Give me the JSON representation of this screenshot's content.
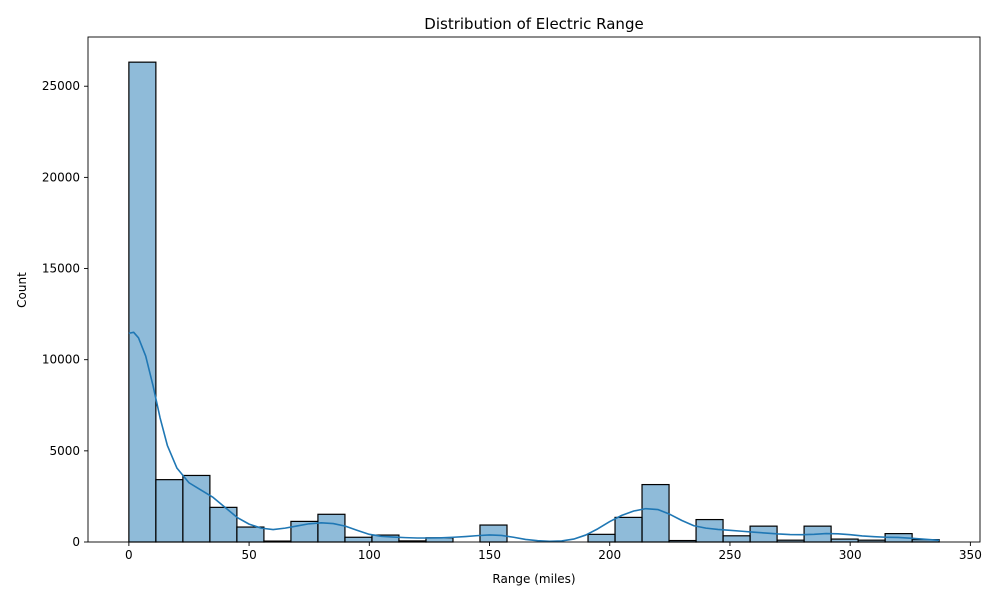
{
  "chart_data": {
    "type": "bar",
    "title": "Distribution of Electric Range",
    "xlabel": "Range (miles)",
    "ylabel": "Count",
    "xlim": [
      -17,
      354
    ],
    "ylim": [
      0,
      27700
    ],
    "x_ticks": [
      0,
      50,
      100,
      150,
      200,
      250,
      300,
      350
    ],
    "y_ticks": [
      0,
      5000,
      10000,
      15000,
      20000,
      25000
    ],
    "grid": false,
    "bar_color": "#1f77b4",
    "bar_opacity": 0.5,
    "edge_color": "#000000",
    "kde_color": "#1f77b4",
    "bins": [
      {
        "x0": 0.0,
        "x1": 11.23,
        "value": 26320
      },
      {
        "x0": 11.23,
        "x1": 22.47,
        "value": 3420
      },
      {
        "x0": 22.47,
        "x1": 33.7,
        "value": 3650
      },
      {
        "x0": 33.7,
        "x1": 44.93,
        "value": 1900
      },
      {
        "x0": 44.93,
        "x1": 56.17,
        "value": 820
      },
      {
        "x0": 56.17,
        "x1": 67.4,
        "value": 50
      },
      {
        "x0": 67.4,
        "x1": 78.63,
        "value": 1130
      },
      {
        "x0": 78.63,
        "x1": 89.87,
        "value": 1520
      },
      {
        "x0": 89.87,
        "x1": 101.1,
        "value": 260
      },
      {
        "x0": 101.1,
        "x1": 112.33,
        "value": 380
      },
      {
        "x0": 112.33,
        "x1": 123.57,
        "value": 60
      },
      {
        "x0": 123.57,
        "x1": 134.8,
        "value": 230
      },
      {
        "x0": 134.8,
        "x1": 146.03,
        "value": 0
      },
      {
        "x0": 146.03,
        "x1": 157.27,
        "value": 930
      },
      {
        "x0": 157.27,
        "x1": 168.5,
        "value": 0
      },
      {
        "x0": 168.5,
        "x1": 179.73,
        "value": 0
      },
      {
        "x0": 179.73,
        "x1": 190.97,
        "value": 0
      },
      {
        "x0": 190.97,
        "x1": 202.2,
        "value": 420
      },
      {
        "x0": 202.2,
        "x1": 213.43,
        "value": 1350
      },
      {
        "x0": 213.43,
        "x1": 224.67,
        "value": 3150
      },
      {
        "x0": 224.67,
        "x1": 235.9,
        "value": 80
      },
      {
        "x0": 235.9,
        "x1": 247.13,
        "value": 1230
      },
      {
        "x0": 247.13,
        "x1": 258.37,
        "value": 340
      },
      {
        "x0": 258.37,
        "x1": 269.6,
        "value": 870
      },
      {
        "x0": 269.6,
        "x1": 280.83,
        "value": 100
      },
      {
        "x0": 280.83,
        "x1": 292.07,
        "value": 870
      },
      {
        "x0": 292.07,
        "x1": 303.3,
        "value": 160
      },
      {
        "x0": 303.3,
        "x1": 314.53,
        "value": 100
      },
      {
        "x0": 314.53,
        "x1": 325.77,
        "value": 460
      },
      {
        "x0": 325.77,
        "x1": 337.0,
        "value": 130
      }
    ],
    "kde": {
      "x": [
        0,
        2,
        4,
        7,
        10,
        13,
        16,
        20,
        25,
        30,
        35,
        40,
        45,
        50,
        55,
        60,
        65,
        70,
        75,
        80,
        85,
        90,
        95,
        100,
        105,
        110,
        115,
        120,
        125,
        130,
        135,
        140,
        145,
        150,
        155,
        160,
        165,
        170,
        175,
        180,
        185,
        190,
        195,
        200,
        205,
        210,
        215,
        220,
        225,
        230,
        235,
        240,
        245,
        250,
        255,
        260,
        265,
        270,
        275,
        280,
        285,
        290,
        295,
        300,
        305,
        310,
        315,
        320,
        325,
        330,
        337
      ],
      "y": [
        11450,
        11500,
        11200,
        10200,
        8600,
        6800,
        5300,
        4050,
        3250,
        2850,
        2450,
        1900,
        1350,
        980,
        760,
        680,
        760,
        880,
        1000,
        1050,
        1010,
        870,
        640,
        420,
        310,
        270,
        240,
        220,
        220,
        230,
        260,
        300,
        350,
        390,
        360,
        260,
        140,
        70,
        40,
        60,
        160,
        380,
        720,
        1120,
        1460,
        1700,
        1830,
        1780,
        1520,
        1180,
        890,
        760,
        690,
        640,
        590,
        540,
        490,
        440,
        410,
        400,
        420,
        460,
        450,
        400,
        330,
        290,
        260,
        250,
        210,
        160,
        90
      ]
    }
  }
}
